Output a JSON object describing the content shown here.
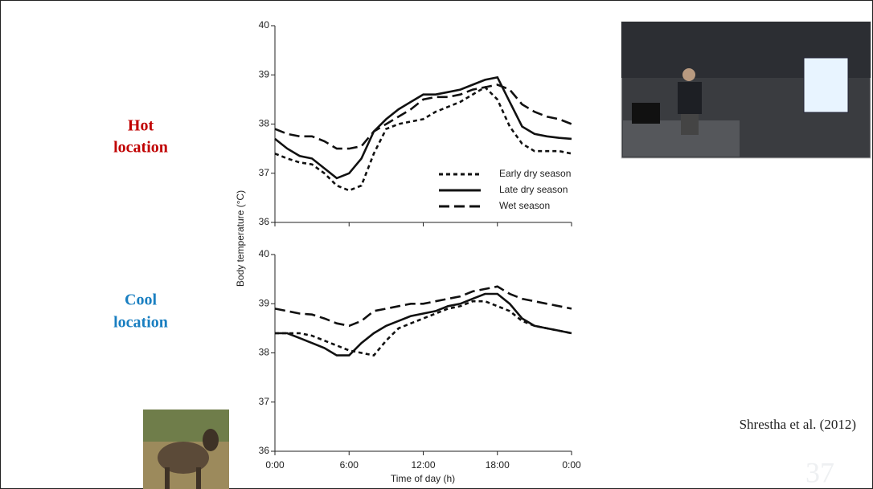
{
  "slide": {
    "hot_label": [
      "Hot",
      "location"
    ],
    "cool_label": [
      "Cool",
      "location"
    ],
    "citation": "Shrestha et al. (2012)",
    "page_number": "37"
  },
  "chart_data": [
    {
      "type": "line",
      "y_label": "Body temperature (°C)",
      "x": [
        0,
        1,
        2,
        3,
        4,
        5,
        6,
        7,
        8,
        9,
        10,
        11,
        12,
        13,
        14,
        15,
        16,
        17,
        18,
        19,
        20,
        21,
        22,
        23,
        24
      ],
      "xlim": [
        0,
        24
      ],
      "xticks": [
        0,
        6,
        12,
        18,
        24
      ],
      "ylim": [
        36,
        40
      ],
      "yticks": [
        36,
        37,
        38,
        39,
        40
      ],
      "legend": "lower-right",
      "series": [
        {
          "name": "Early dry season",
          "color": "#111111",
          "dash": "short",
          "values": [
            37.4,
            37.3,
            37.22,
            37.18,
            37.0,
            36.75,
            36.65,
            36.75,
            37.4,
            37.9,
            38.0,
            38.05,
            38.1,
            38.25,
            38.35,
            38.45,
            38.6,
            38.75,
            38.5,
            37.95,
            37.6,
            37.45,
            37.45,
            37.45,
            37.4
          ]
        },
        {
          "name": "Late dry season",
          "color": "#111111",
          "dash": "solid",
          "values": [
            37.7,
            37.5,
            37.35,
            37.3,
            37.1,
            36.9,
            37.0,
            37.3,
            37.85,
            38.1,
            38.3,
            38.45,
            38.6,
            38.6,
            38.65,
            38.7,
            38.8,
            38.9,
            38.95,
            38.45,
            37.95,
            37.8,
            37.75,
            37.72,
            37.7
          ]
        },
        {
          "name": "Wet season",
          "color": "#111111",
          "dash": "long",
          "values": [
            37.9,
            37.8,
            37.75,
            37.75,
            37.65,
            37.5,
            37.5,
            37.55,
            37.85,
            38.0,
            38.15,
            38.3,
            38.5,
            38.55,
            38.55,
            38.6,
            38.7,
            38.75,
            38.8,
            38.7,
            38.4,
            38.25,
            38.15,
            38.1,
            38.0
          ]
        }
      ]
    },
    {
      "type": "line",
      "x_label": "Time of day (h)",
      "x": [
        0,
        1,
        2,
        3,
        4,
        5,
        6,
        7,
        8,
        9,
        10,
        11,
        12,
        13,
        14,
        15,
        16,
        17,
        18,
        19,
        20,
        21,
        22,
        23,
        24
      ],
      "xlim": [
        0,
        24
      ],
      "xticks": [
        {
          "value": 0,
          "label": "0:00"
        },
        {
          "value": 6,
          "label": "6:00"
        },
        {
          "value": 12,
          "label": "12:00"
        },
        {
          "value": 18,
          "label": "18:00"
        },
        {
          "value": 24,
          "label": "0:00"
        }
      ],
      "ylim": [
        36,
        40
      ],
      "yticks": [
        36,
        37,
        38,
        39,
        40
      ],
      "legend": "none",
      "series": [
        {
          "color": "#111111",
          "dash": "short",
          "values": [
            38.4,
            38.4,
            38.4,
            38.35,
            38.25,
            38.15,
            38.05,
            38.0,
            37.95,
            38.25,
            38.5,
            38.6,
            38.7,
            38.8,
            38.9,
            38.95,
            39.05,
            39.05,
            38.95,
            38.85,
            38.65,
            38.55,
            38.5,
            38.45,
            38.4
          ]
        },
        {
          "color": "#111111",
          "dash": "solid",
          "values": [
            38.4,
            38.4,
            38.3,
            38.2,
            38.1,
            37.95,
            37.95,
            38.2,
            38.4,
            38.55,
            38.65,
            38.75,
            38.8,
            38.85,
            38.95,
            39.0,
            39.1,
            39.2,
            39.2,
            39.0,
            38.7,
            38.55,
            38.5,
            38.45,
            38.4
          ]
        },
        {
          "color": "#111111",
          "dash": "long",
          "values": [
            38.9,
            38.85,
            38.8,
            38.78,
            38.7,
            38.6,
            38.55,
            38.65,
            38.85,
            38.9,
            38.95,
            39.0,
            39.0,
            39.05,
            39.1,
            39.15,
            39.25,
            39.3,
            39.35,
            39.2,
            39.1,
            39.05,
            39.0,
            38.95,
            38.9
          ]
        }
      ]
    }
  ]
}
